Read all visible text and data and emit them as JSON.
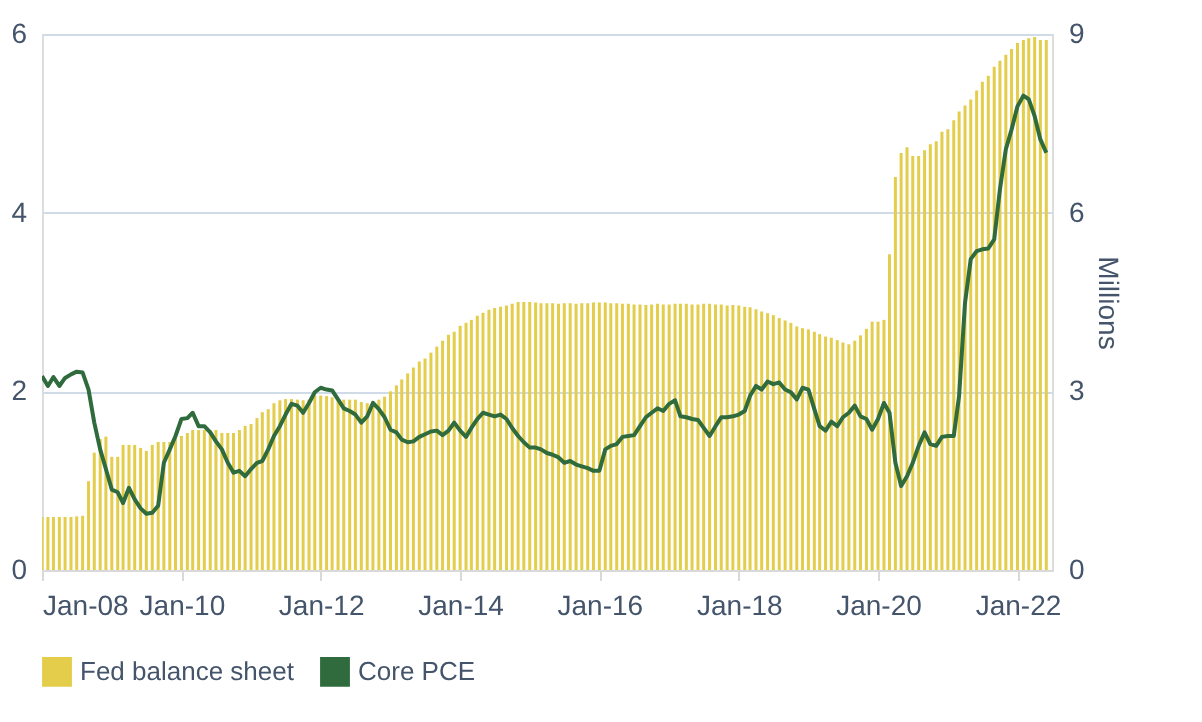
{
  "chart_data": {
    "type": "bar",
    "x": [
      "2008-01",
      "2008-02",
      "2008-03",
      "2008-04",
      "2008-05",
      "2008-06",
      "2008-07",
      "2008-08",
      "2008-09",
      "2008-10",
      "2008-11",
      "2008-12",
      "2009-01",
      "2009-02",
      "2009-03",
      "2009-04",
      "2009-05",
      "2009-06",
      "2009-07",
      "2009-08",
      "2009-09",
      "2009-10",
      "2009-11",
      "2009-12",
      "2010-01",
      "2010-02",
      "2010-03",
      "2010-04",
      "2010-05",
      "2010-06",
      "2010-07",
      "2010-08",
      "2010-09",
      "2010-10",
      "2010-11",
      "2010-12",
      "2011-01",
      "2011-02",
      "2011-03",
      "2011-04",
      "2011-05",
      "2011-06",
      "2011-07",
      "2011-08",
      "2011-09",
      "2011-10",
      "2011-11",
      "2011-12",
      "2012-01",
      "2012-02",
      "2012-03",
      "2012-04",
      "2012-05",
      "2012-06",
      "2012-07",
      "2012-08",
      "2012-09",
      "2012-10",
      "2012-11",
      "2012-12",
      "2013-01",
      "2013-02",
      "2013-03",
      "2013-04",
      "2013-05",
      "2013-06",
      "2013-07",
      "2013-08",
      "2013-09",
      "2013-10",
      "2013-11",
      "2013-12",
      "2014-01",
      "2014-02",
      "2014-03",
      "2014-04",
      "2014-05",
      "2014-06",
      "2014-07",
      "2014-08",
      "2014-09",
      "2014-10",
      "2014-11",
      "2014-12",
      "2015-01",
      "2015-02",
      "2015-03",
      "2015-04",
      "2015-05",
      "2015-06",
      "2015-07",
      "2015-08",
      "2015-09",
      "2015-10",
      "2015-11",
      "2015-12",
      "2016-01",
      "2016-02",
      "2016-03",
      "2016-04",
      "2016-05",
      "2016-06",
      "2016-07",
      "2016-08",
      "2016-09",
      "2016-10",
      "2016-11",
      "2016-12",
      "2017-01",
      "2017-02",
      "2017-03",
      "2017-04",
      "2017-05",
      "2017-06",
      "2017-07",
      "2017-08",
      "2017-09",
      "2017-10",
      "2017-11",
      "2017-12",
      "2018-01",
      "2018-02",
      "2018-03",
      "2018-04",
      "2018-05",
      "2018-06",
      "2018-07",
      "2018-08",
      "2018-09",
      "2018-10",
      "2018-11",
      "2018-12",
      "2019-01",
      "2019-02",
      "2019-03",
      "2019-04",
      "2019-05",
      "2019-06",
      "2019-07",
      "2019-08",
      "2019-09",
      "2019-10",
      "2019-11",
      "2019-12",
      "2020-01",
      "2020-02",
      "2020-03",
      "2020-04",
      "2020-05",
      "2020-06",
      "2020-07",
      "2020-08",
      "2020-09",
      "2020-10",
      "2020-11",
      "2020-12",
      "2021-01",
      "2021-02",
      "2021-03",
      "2021-04",
      "2021-05",
      "2021-06",
      "2021-07",
      "2021-08",
      "2021-09",
      "2021-10",
      "2021-11",
      "2021-12",
      "2022-01",
      "2022-02",
      "2022-03",
      "2022-04",
      "2022-05",
      "2022-06"
    ],
    "series": [
      {
        "name": "Fed balance sheet",
        "axis": "y2",
        "color": "#e3cd4a",
        "values": [
          0.89,
          0.89,
          0.89,
          0.89,
          0.89,
          0.89,
          0.9,
          0.91,
          1.49,
          1.97,
          2.2,
          2.24,
          1.9,
          1.9,
          2.1,
          2.1,
          2.1,
          2.05,
          2.0,
          2.1,
          2.15,
          2.15,
          2.15,
          2.24,
          2.25,
          2.3,
          2.35,
          2.35,
          2.35,
          2.35,
          2.35,
          2.3,
          2.3,
          2.3,
          2.35,
          2.42,
          2.45,
          2.55,
          2.65,
          2.7,
          2.8,
          2.85,
          2.87,
          2.87,
          2.86,
          2.85,
          2.86,
          2.93,
          2.93,
          2.92,
          2.9,
          2.88,
          2.86,
          2.86,
          2.86,
          2.82,
          2.8,
          2.82,
          2.86,
          2.91,
          3.0,
          3.1,
          3.2,
          3.3,
          3.4,
          3.5,
          3.55,
          3.65,
          3.75,
          3.85,
          3.95,
          4.0,
          4.1,
          4.15,
          4.2,
          4.27,
          4.32,
          4.37,
          4.4,
          4.42,
          4.44,
          4.47,
          4.5,
          4.5,
          4.5,
          4.49,
          4.48,
          4.48,
          4.48,
          4.47,
          4.48,
          4.48,
          4.47,
          4.48,
          4.48,
          4.49,
          4.49,
          4.49,
          4.48,
          4.48,
          4.47,
          4.47,
          4.46,
          4.46,
          4.45,
          4.46,
          4.47,
          4.46,
          4.46,
          4.47,
          4.47,
          4.47,
          4.46,
          4.46,
          4.47,
          4.47,
          4.46,
          4.46,
          4.44,
          4.45,
          4.44,
          4.42,
          4.41,
          4.38,
          4.34,
          4.31,
          4.28,
          4.23,
          4.19,
          4.15,
          4.09,
          4.06,
          4.04,
          4.0,
          3.96,
          3.92,
          3.9,
          3.86,
          3.82,
          3.79,
          3.85,
          3.94,
          4.05,
          4.17,
          4.17,
          4.2,
          5.3,
          6.6,
          7.0,
          7.1,
          6.95,
          6.95,
          7.05,
          7.15,
          7.2,
          7.36,
          7.4,
          7.55,
          7.7,
          7.8,
          7.9,
          8.05,
          8.2,
          8.3,
          8.45,
          8.55,
          8.65,
          8.75,
          8.85,
          8.9,
          8.93,
          8.95,
          8.9,
          8.9
        ]
      },
      {
        "name": "Core PCE",
        "type": "line",
        "color": "#2f6b3c",
        "values": [
          2.17,
          2.06,
          2.16,
          2.06,
          2.15,
          2.19,
          2.22,
          2.21,
          2.02,
          1.65,
          1.35,
          1.13,
          0.9,
          0.87,
          0.75,
          0.92,
          0.79,
          0.69,
          0.63,
          0.64,
          0.72,
          1.2,
          1.35,
          1.5,
          1.69,
          1.7,
          1.76,
          1.61,
          1.61,
          1.54,
          1.44,
          1.35,
          1.2,
          1.09,
          1.11,
          1.05,
          1.13,
          1.2,
          1.22,
          1.35,
          1.5,
          1.61,
          1.74,
          1.86,
          1.84,
          1.76,
          1.87,
          1.99,
          2.04,
          2.02,
          2.01,
          1.91,
          1.81,
          1.78,
          1.74,
          1.65,
          1.72,
          1.87,
          1.8,
          1.71,
          1.57,
          1.54,
          1.46,
          1.43,
          1.44,
          1.49,
          1.52,
          1.55,
          1.56,
          1.51,
          1.56,
          1.65,
          1.56,
          1.49,
          1.59,
          1.69,
          1.76,
          1.74,
          1.72,
          1.74,
          1.69,
          1.59,
          1.5,
          1.43,
          1.37,
          1.37,
          1.35,
          1.31,
          1.29,
          1.26,
          1.2,
          1.22,
          1.18,
          1.16,
          1.14,
          1.11,
          1.11,
          1.35,
          1.39,
          1.41,
          1.49,
          1.5,
          1.51,
          1.61,
          1.71,
          1.76,
          1.81,
          1.78,
          1.86,
          1.9,
          1.72,
          1.71,
          1.69,
          1.68,
          1.59,
          1.5,
          1.61,
          1.71,
          1.71,
          1.72,
          1.74,
          1.78,
          1.95,
          2.06,
          2.02,
          2.11,
          2.08,
          2.1,
          2.02,
          1.99,
          1.91,
          2.04,
          2.02,
          1.8,
          1.61,
          1.56,
          1.66,
          1.61,
          1.71,
          1.76,
          1.84,
          1.72,
          1.69,
          1.57,
          1.69,
          1.87,
          1.76,
          1.2,
          0.94,
          1.05,
          1.2,
          1.39,
          1.54,
          1.41,
          1.39,
          1.49,
          1.5,
          1.5,
          1.95,
          2.99,
          3.48,
          3.57,
          3.59,
          3.6,
          3.7,
          4.26,
          4.71,
          4.93,
          5.19,
          5.31,
          5.27,
          5.08,
          4.82,
          4.67
        ]
      }
    ],
    "xlim": [
      "2008-01",
      "2022-07"
    ],
    "xticks": [
      {
        "value": "2008-01",
        "label": "Jan-08"
      },
      {
        "value": "2010-01",
        "label": "Jan-10"
      },
      {
        "value": "2012-01",
        "label": "Jan-12"
      },
      {
        "value": "2014-01",
        "label": "Jan-14"
      },
      {
        "value": "2016-01",
        "label": "Jan-16"
      },
      {
        "value": "2018-01",
        "label": "Jan-18"
      },
      {
        "value": "2020-01",
        "label": "Jan-20"
      },
      {
        "value": "2022-01",
        "label": "Jan-22"
      }
    ],
    "ylim": [
      0,
      6
    ],
    "yticks": [
      0,
      2,
      4,
      6
    ],
    "y2lim": [
      0,
      9
    ],
    "y2ticks": [
      0,
      3,
      6,
      9
    ],
    "y2label": "Millions",
    "grid": "y",
    "legend": "bottom",
    "marker": "none",
    "line_style": "solid"
  }
}
